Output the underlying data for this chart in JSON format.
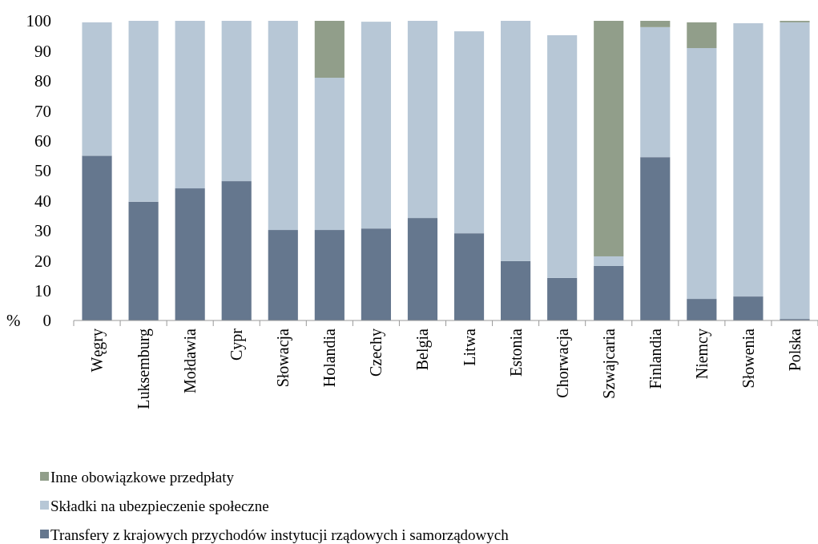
{
  "chart_data": {
    "type": "bar",
    "stacked": true,
    "ylabel": "%",
    "categories": [
      "Węgry",
      "Luksemburg",
      "Mołdawia",
      "Cypr",
      "Słowacja",
      "Holandia",
      "Czechy",
      "Belgia",
      "Litwa",
      "Estonia",
      "Chorwacja",
      "Szwajcaria",
      "Finlandia",
      "Niemcy",
      "Słowenia",
      "Polska"
    ],
    "series": [
      {
        "name": "Transfery z krajowych przychodów instytucji rządowych i samorządowych",
        "color": "#65778e",
        "values": [
          55,
          39.6,
          44.1,
          46.5,
          30.2,
          30.2,
          30.7,
          34.2,
          29.1,
          19.8,
          14.2,
          18.2,
          54.5,
          7.2,
          8,
          0.5
        ]
      },
      {
        "name": "Składki na ubezpieczenie społeczne",
        "color": "#b7c7d6",
        "values": [
          44.5,
          60.4,
          55.9,
          53.5,
          69.8,
          50.8,
          69,
          65.8,
          67.4,
          80.2,
          81,
          3.2,
          43.4,
          83.7,
          91.2,
          99
        ]
      },
      {
        "name": "Inne obowiązkowe przedpłaty",
        "color": "#919e8a",
        "values": [
          0,
          0,
          0,
          0,
          0,
          19,
          0,
          0,
          0,
          0,
          0,
          78.6,
          2.1,
          8.6,
          0,
          0.5
        ]
      }
    ],
    "ylim": [
      0,
      100
    ],
    "yticks": [
      0,
      10,
      20,
      30,
      40,
      50,
      60,
      70,
      80,
      90,
      100
    ],
    "grid": false,
    "legend": "bottom"
  }
}
